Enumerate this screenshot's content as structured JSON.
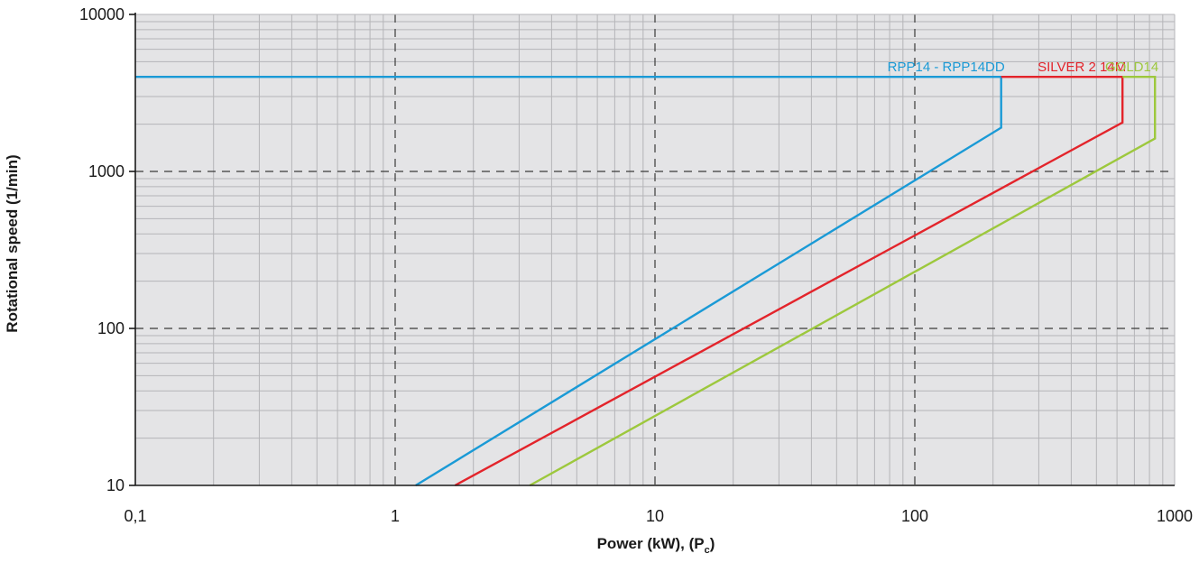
{
  "chart_data": {
    "type": "line",
    "title": "",
    "xlabel": "Power (kW), (P",
    "xlabel_sub": "c",
    "xlabel_close": ")",
    "ylabel": "Rotational speed (1/min)",
    "xscale": "log",
    "yscale": "log",
    "xlim": [
      0.1,
      1000
    ],
    "ylim": [
      10,
      10000
    ],
    "xticks": [
      0.1,
      1,
      10,
      100,
      1000
    ],
    "xtick_labels": [
      "0,1",
      "1",
      "10",
      "100",
      "1000"
    ],
    "yticks": [
      10,
      100,
      1000,
      10000
    ],
    "ytick_labels": [
      "10",
      "100",
      "1000",
      "10000"
    ],
    "grid": true,
    "background": "#e4e4e6",
    "series": [
      {
        "name": "RPP14 - RPP14DD",
        "color": "#1a9ad6",
        "points": [
          [
            1.2,
            10
          ],
          [
            215,
            1900
          ],
          [
            215,
            4000
          ],
          [
            0.1,
            4000
          ]
        ]
      },
      {
        "name": "SILVER 2 14M",
        "color": "#e3242b",
        "points": [
          [
            1.7,
            10
          ],
          [
            630,
            2050
          ],
          [
            630,
            4000
          ],
          [
            215,
            4000
          ]
        ]
      },
      {
        "name": "GOLD14",
        "color": "#9dc83d",
        "points": [
          [
            3.3,
            10
          ],
          [
            840,
            1620
          ],
          [
            840,
            4000
          ],
          [
            630,
            4000
          ]
        ]
      }
    ]
  }
}
